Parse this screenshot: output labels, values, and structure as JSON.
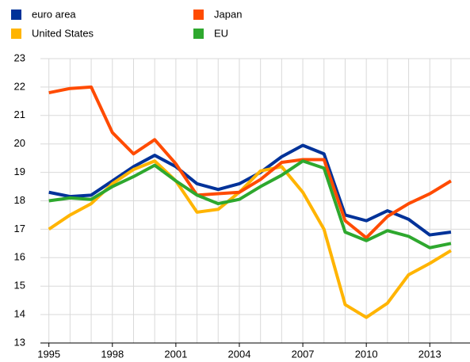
{
  "chart_data": {
    "type": "line",
    "x": [
      1995,
      1996,
      1997,
      1998,
      1999,
      2000,
      2001,
      2002,
      2003,
      2004,
      2005,
      2006,
      2007,
      2008,
      2009,
      2010,
      2011,
      2012,
      2013,
      2014
    ],
    "series": [
      {
        "name": "euro area",
        "color": "#003299",
        "values": [
          18.3,
          18.15,
          18.2,
          18.7,
          19.2,
          19.6,
          19.2,
          18.6,
          18.4,
          18.6,
          19.0,
          19.55,
          19.95,
          19.65,
          17.5,
          17.3,
          17.65,
          17.35,
          16.8,
          16.9
        ]
      },
      {
        "name": "United States",
        "color": "#ffb400",
        "values": [
          17.0,
          17.5,
          17.9,
          18.6,
          19.1,
          19.4,
          18.7,
          17.6,
          17.7,
          18.3,
          19.05,
          19.2,
          18.3,
          17.0,
          14.35,
          13.9,
          14.4,
          15.4,
          15.8,
          16.25
        ]
      },
      {
        "name": "Japan",
        "color": "#ff4b00",
        "values": [
          21.8,
          21.95,
          22.0,
          20.4,
          19.65,
          20.15,
          19.3,
          18.2,
          18.25,
          18.3,
          18.75,
          19.35,
          19.45,
          19.45,
          17.3,
          16.7,
          17.45,
          17.9,
          18.25,
          18.7
        ]
      },
      {
        "name": "EU",
        "color": "#2ea82e",
        "values": [
          18.0,
          18.1,
          18.05,
          18.5,
          18.85,
          19.25,
          18.7,
          18.2,
          17.9,
          18.05,
          18.5,
          18.9,
          19.4,
          19.15,
          16.9,
          16.6,
          16.95,
          16.75,
          16.35,
          16.5
        ]
      }
    ],
    "xlim": [
      1994.6,
      2014.9
    ],
    "xticks": [
      1995,
      1998,
      2001,
      2004,
      2007,
      2010,
      2013
    ],
    "ylim": [
      13,
      23
    ],
    "yticks": [
      13,
      14,
      15,
      16,
      17,
      18,
      19,
      20,
      21,
      22,
      23
    ],
    "grid": true
  }
}
